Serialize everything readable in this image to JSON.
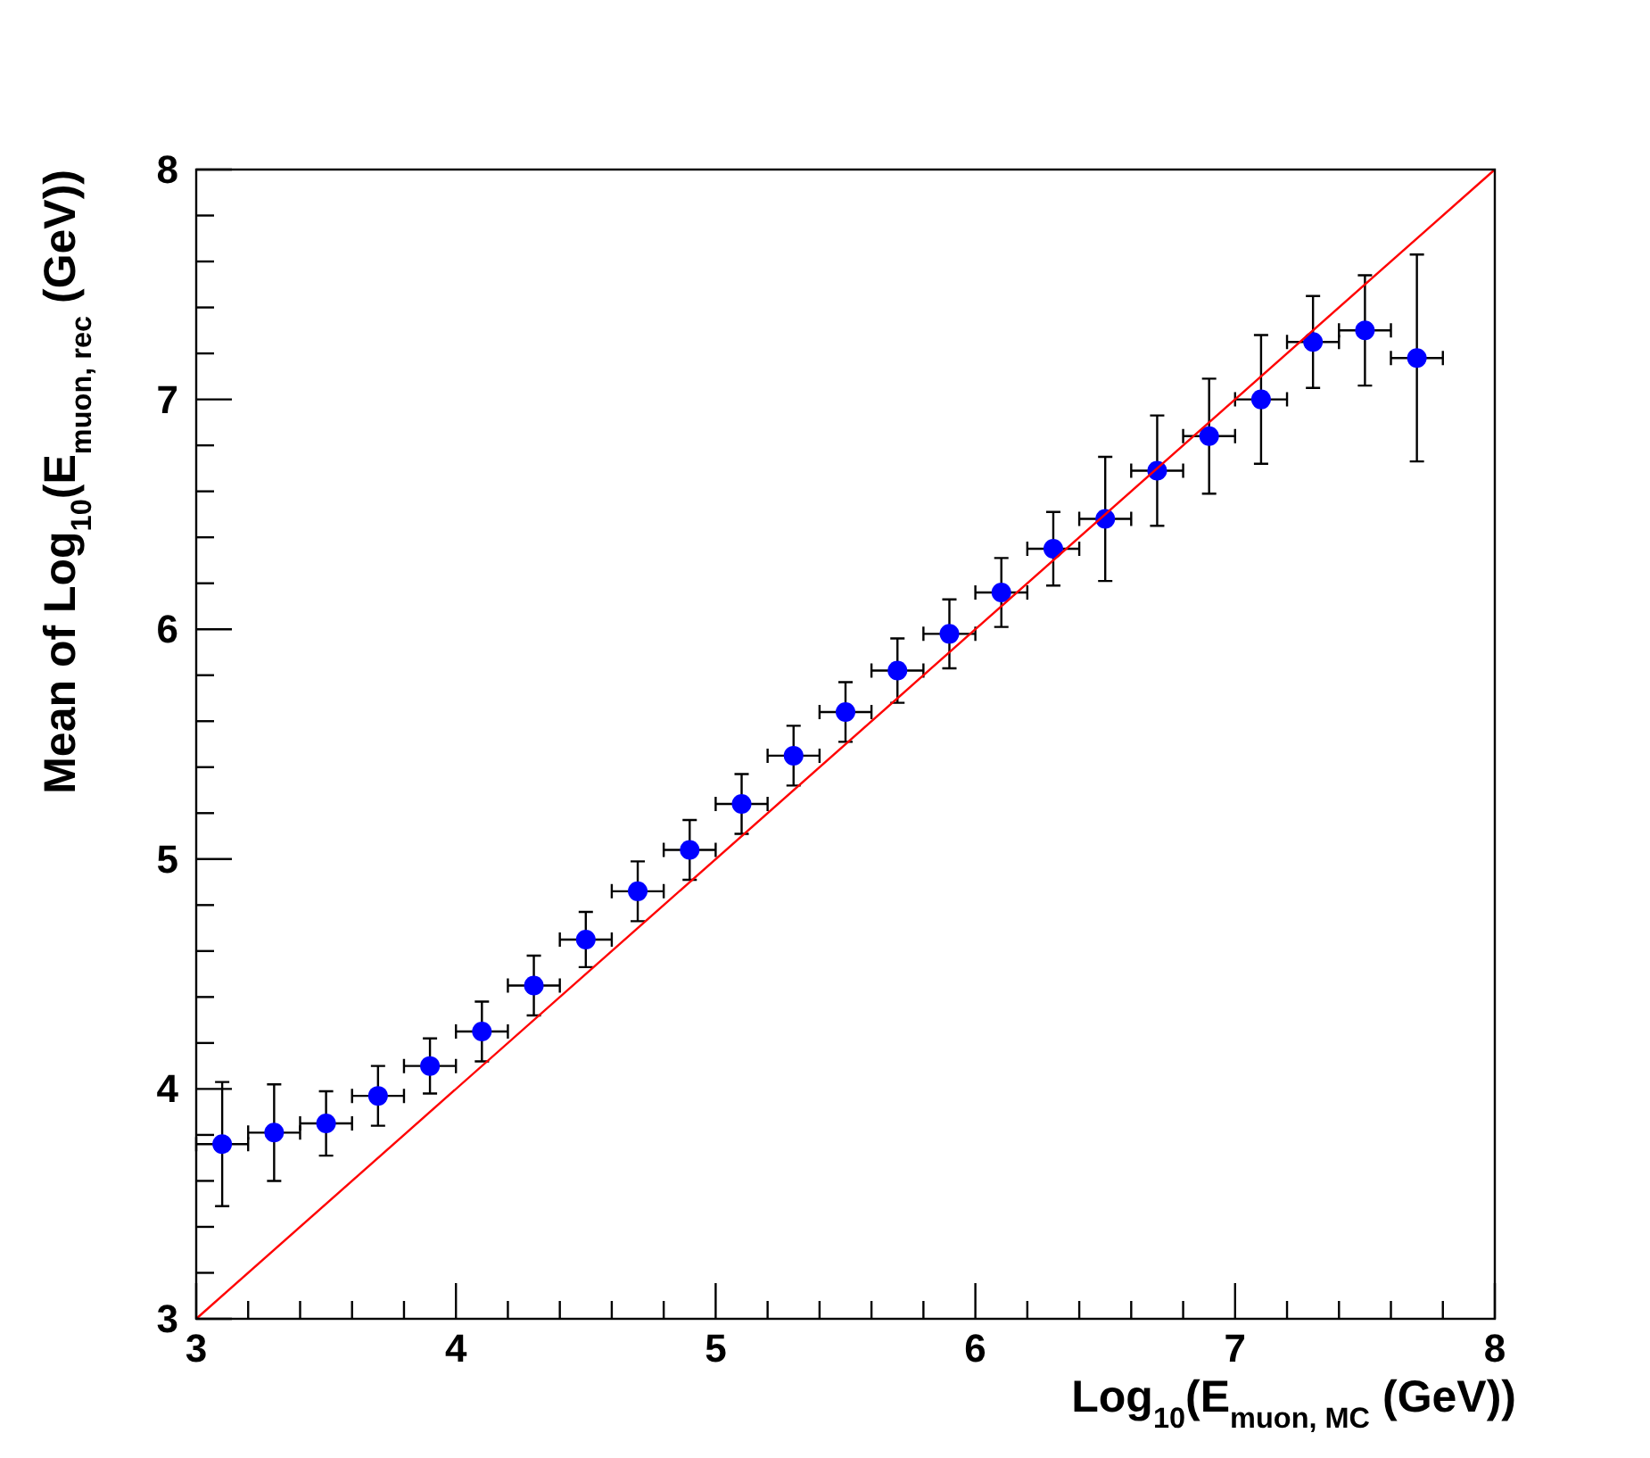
{
  "chart_data": {
    "type": "scatter",
    "xlabel": "Log$_{10}$(E$_{muon, MC}$ (GeV))",
    "ylabel": "Mean of Log$_{10}$(E$_{muon, rec}$ (GeV))",
    "xlim": [
      3,
      8
    ],
    "ylim": [
      3,
      8
    ],
    "xticks": [
      3,
      4,
      5,
      6,
      7,
      8
    ],
    "yticks": [
      3,
      4,
      5,
      6,
      7,
      8
    ],
    "grid": false,
    "marker": "circle",
    "series": [
      {
        "color": "#0000ff",
        "x": [
          3.1,
          3.3,
          3.5,
          3.7,
          3.9,
          4.1,
          4.3,
          4.5,
          4.7,
          4.9,
          5.1,
          5.3,
          5.5,
          5.7,
          5.9,
          6.1,
          6.3,
          6.5,
          6.7,
          6.9,
          7.1,
          7.3,
          7.5,
          7.7
        ],
        "values": [
          3.76,
          3.81,
          3.85,
          3.97,
          4.1,
          4.25,
          4.45,
          4.65,
          4.86,
          5.04,
          5.24,
          5.45,
          5.64,
          5.82,
          5.98,
          6.16,
          6.35,
          6.48,
          6.69,
          6.84,
          7.0,
          7.25,
          7.3,
          7.18
        ],
        "errors": [
          0.27,
          0.21,
          0.14,
          0.13,
          0.12,
          0.13,
          0.13,
          0.12,
          0.13,
          0.13,
          0.13,
          0.13,
          0.13,
          0.14,
          0.15,
          0.15,
          0.16,
          0.27,
          0.24,
          0.25,
          0.28,
          0.2,
          0.24,
          0.45
        ],
        "xerrors": [
          0.1,
          0.1,
          0.1,
          0.1,
          0.1,
          0.1,
          0.1,
          0.1,
          0.1,
          0.1,
          0.1,
          0.1,
          0.1,
          0.1,
          0.1,
          0.1,
          0.1,
          0.1,
          0.1,
          0.1,
          0.1,
          0.1,
          0.1,
          0.1
        ]
      },
      {
        "type": "line",
        "color": "#ff0000",
        "marker": "none",
        "x": [
          3,
          8
        ],
        "values": [
          3,
          8
        ]
      }
    ]
  }
}
